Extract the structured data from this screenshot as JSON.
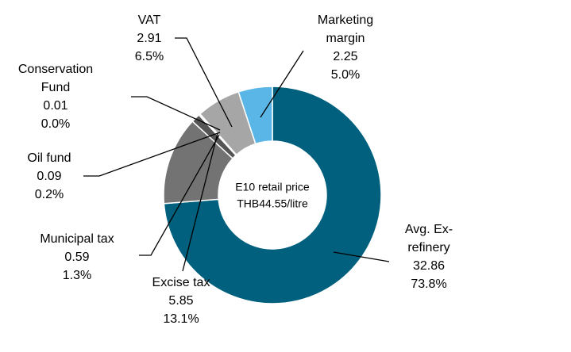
{
  "chart_data": {
    "type": "donut",
    "center_label": [
      "E10 retail price",
      "THB44.55/litre"
    ],
    "categories": [
      [
        "Avg. Ex-",
        "refinery"
      ],
      [
        "Excise tax"
      ],
      [
        "Municipal tax"
      ],
      [
        "Oil fund"
      ],
      [
        "Conservation",
        "Fund"
      ],
      [
        "VAT"
      ],
      [
        "Marketing",
        "margin"
      ]
    ],
    "values": [
      32.86,
      5.85,
      0.59,
      0.09,
      0.01,
      2.91,
      2.25
    ],
    "shares": [
      {
        "value": 73.8,
        "label": "73.8%"
      },
      {
        "value": 13.1,
        "label": "13.1%"
      },
      {
        "value": 1.3,
        "label": "1.3%"
      },
      {
        "value": 0.2,
        "label": "0.2%"
      },
      {
        "value": 0.0,
        "label": "0.0%"
      },
      {
        "value": 6.5,
        "label": "6.5%"
      },
      {
        "value": 5.0,
        "label": "5.0%"
      }
    ],
    "colors": [
      "#00607d",
      "#737373",
      "#555555",
      "#a9c4ae",
      "#cfcfcf",
      "#a6a6a6",
      "#5ab6e6"
    ]
  }
}
